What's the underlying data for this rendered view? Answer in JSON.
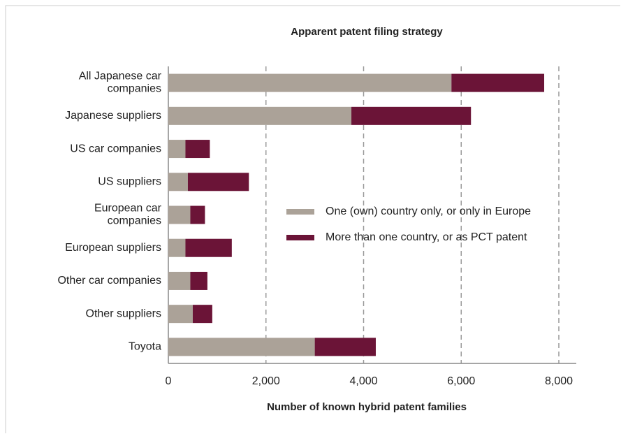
{
  "chart_data": {
    "type": "stacked-bar-horizontal",
    "title": "Apparent patent filing strategy",
    "x_label": "Number of known hybrid patent families",
    "categories": [
      "All Japanese car companies",
      "Japanese suppliers",
      "US car companies",
      "US suppliers",
      "European car companies",
      "European suppliers",
      "Other car companies",
      "Other suppliers",
      "Toyota"
    ],
    "series": [
      {
        "name": "One (own) country only, or only in Europe",
        "color": "#aba298",
        "values": [
          5800,
          3750,
          350,
          400,
          450,
          350,
          450,
          500,
          3000
        ]
      },
      {
        "name": "More than one country, or as PCT patent",
        "color": "#6b1437",
        "values": [
          1900,
          2450,
          500,
          1250,
          300,
          950,
          350,
          400,
          1250
        ]
      }
    ],
    "xlim": [
      0,
      8000
    ],
    "xticks": [
      0,
      {
        "value": 2000,
        "label": "2,000"
      },
      {
        "value": 4000,
        "label": "4,000"
      },
      {
        "value": 6000,
        "label": "6,000"
      },
      {
        "value": 8000,
        "label": "8,000"
      }
    ],
    "grid": true,
    "legend": "right"
  }
}
